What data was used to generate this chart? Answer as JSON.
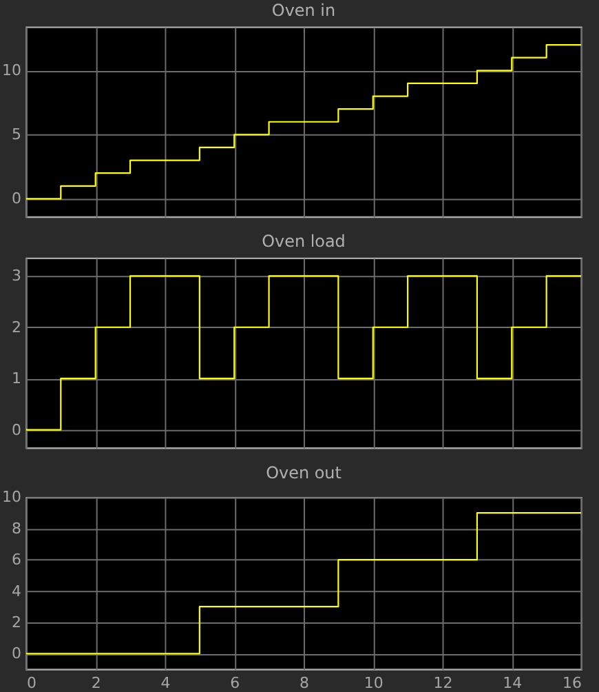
{
  "chart_data": [
    {
      "type": "step",
      "title": "Oven in",
      "x": [
        0,
        1,
        2,
        3,
        5,
        6,
        7,
        9,
        10,
        11,
        13,
        14,
        15,
        16
      ],
      "series": [
        {
          "color": "#ffff00",
          "values": [
            0,
            1,
            2,
            3,
            4,
            5,
            6,
            7,
            8,
            9,
            10,
            11,
            12,
            12
          ]
        }
      ],
      "xlim": [
        0,
        16
      ],
      "xticks": [
        0,
        2,
        4,
        6,
        8,
        10,
        12,
        14,
        16
      ],
      "ylim": [
        -1.4,
        13.4
      ],
      "yticks": [
        0,
        5,
        10
      ],
      "grid": true,
      "tick_labels": "y",
      "line_style": "solid"
    },
    {
      "type": "step",
      "title": "Oven load",
      "x": [
        0,
        1,
        2,
        3,
        5,
        6,
        7,
        9,
        10,
        11,
        13,
        14,
        15,
        16
      ],
      "series": [
        {
          "color": "#ffff00",
          "values": [
            0,
            1,
            2,
            3,
            1,
            2,
            3,
            1,
            2,
            3,
            1,
            2,
            3,
            3
          ]
        }
      ],
      "xlim": [
        0,
        16
      ],
      "xticks": [
        0,
        2,
        4,
        6,
        8,
        10,
        12,
        14,
        16
      ],
      "ylim": [
        -0.35,
        3.35
      ],
      "yticks": [
        0,
        1,
        2,
        3
      ],
      "grid": true,
      "tick_labels": "y",
      "line_style": "solid"
    },
    {
      "type": "step",
      "title": "Oven out",
      "x": [
        0,
        5,
        9,
        13,
        16
      ],
      "series": [
        {
          "color": "#ffff00",
          "values": [
            0,
            3,
            6,
            9,
            9
          ]
        }
      ],
      "xlim": [
        0,
        16
      ],
      "xticks": [
        0,
        2,
        4,
        6,
        8,
        10,
        12,
        14,
        16
      ],
      "ylim": [
        -1,
        10
      ],
      "yticks": [
        0,
        2,
        4,
        6,
        8,
        10
      ],
      "grid": true,
      "line_style": "solid"
    }
  ]
}
